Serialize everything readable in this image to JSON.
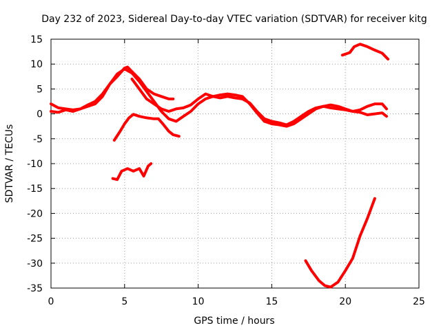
{
  "chart_data": {
    "type": "line",
    "title": "Day 232 of 2023, Sidereal Day-to-day VTEC variation (SDTVAR) for receiver kitg",
    "xlabel": "GPS time / hours",
    "ylabel": "SDTVAR / TECUs",
    "xlim": [
      0,
      25
    ],
    "ylim": [
      -35,
      15
    ],
    "xticks": [
      0,
      5,
      10,
      15,
      20,
      25
    ],
    "yticks": [
      -35,
      -30,
      -25,
      -20,
      -15,
      -10,
      -5,
      0,
      5,
      10,
      15
    ],
    "grid": true,
    "series_color": "#ff0000",
    "series": [
      {
        "name": "trace-1",
        "points": [
          [
            0,
            2
          ],
          [
            0.5,
            1.2
          ],
          [
            1,
            1
          ],
          [
            1.5,
            0.8
          ],
          [
            2,
            1
          ],
          [
            2.5,
            1.8
          ],
          [
            3,
            2.5
          ],
          [
            3.5,
            4
          ],
          [
            4,
            6
          ],
          [
            4.5,
            7.5
          ],
          [
            5,
            9.2
          ],
          [
            5.2,
            9.4
          ],
          [
            5.5,
            8.5
          ],
          [
            6,
            7
          ],
          [
            6.5,
            5
          ],
          [
            7,
            4
          ],
          [
            7.5,
            3.5
          ],
          [
            8,
            3
          ],
          [
            8.3,
            3
          ]
        ]
      },
      {
        "name": "trace-2",
        "points": [
          [
            0,
            0.5
          ],
          [
            0.5,
            0.3
          ],
          [
            1,
            0.8
          ],
          [
            1.5,
            0.5
          ],
          [
            2,
            1
          ],
          [
            2.5,
            1.5
          ],
          [
            3,
            2
          ],
          [
            3.5,
            3.5
          ],
          [
            4,
            6
          ],
          [
            4.5,
            8
          ],
          [
            5,
            9
          ],
          [
            5.5,
            8.2
          ],
          [
            6,
            6.5
          ],
          [
            6.5,
            4.5
          ],
          [
            7,
            2.5
          ],
          [
            7.5,
            0.5
          ],
          [
            8,
            -1
          ],
          [
            8.5,
            -1.5
          ],
          [
            9,
            -0.5
          ],
          [
            9.5,
            0.5
          ],
          [
            10,
            2
          ],
          [
            10.5,
            3
          ],
          [
            11,
            3.5
          ],
          [
            11.5,
            3.2
          ],
          [
            12,
            3.5
          ],
          [
            12.5,
            3.2
          ],
          [
            13,
            3
          ],
          [
            13.5,
            2.2
          ],
          [
            14,
            0.5
          ],
          [
            14.5,
            -1
          ],
          [
            15,
            -1.5
          ],
          [
            15.5,
            -1.8
          ],
          [
            16,
            -2.2
          ],
          [
            16.5,
            -1.5
          ],
          [
            17,
            -0.5
          ],
          [
            17.5,
            0.5
          ],
          [
            18,
            1.2
          ],
          [
            18.5,
            1.5
          ],
          [
            19,
            1.2
          ],
          [
            19.5,
            1
          ],
          [
            20,
            0.8
          ],
          [
            20.5,
            0.5
          ],
          [
            21,
            0.3
          ],
          [
            21.5,
            -0.2
          ],
          [
            22,
            0
          ],
          [
            22.5,
            0.2
          ],
          [
            22.8,
            -0.5
          ]
        ]
      },
      {
        "name": "trace-3",
        "points": [
          [
            5.5,
            7
          ],
          [
            6,
            5
          ],
          [
            6.5,
            3
          ],
          [
            7,
            2
          ],
          [
            7.5,
            1
          ],
          [
            8,
            0.5
          ],
          [
            8.5,
            1
          ],
          [
            9,
            1.2
          ],
          [
            9.5,
            1.8
          ],
          [
            10,
            3
          ],
          [
            10.5,
            4
          ],
          [
            11,
            3.5
          ],
          [
            11.5,
            3.8
          ],
          [
            12,
            4
          ],
          [
            12.5,
            3.8
          ],
          [
            13,
            3.5
          ],
          [
            13.5,
            2
          ],
          [
            14,
            0.2
          ],
          [
            14.5,
            -1.5
          ],
          [
            15,
            -2
          ],
          [
            15.5,
            -2.2
          ],
          [
            16,
            -2.5
          ],
          [
            16.5,
            -2
          ],
          [
            17,
            -1
          ],
          [
            17.5,
            0
          ],
          [
            18,
            1
          ],
          [
            18.5,
            1.5
          ],
          [
            19,
            1.8
          ],
          [
            19.5,
            1.5
          ],
          [
            20,
            1
          ],
          [
            20.5,
            0.5
          ],
          [
            21,
            0.8
          ],
          [
            21.5,
            1.5
          ],
          [
            22,
            2
          ],
          [
            22.5,
            2
          ],
          [
            22.8,
            1
          ]
        ]
      },
      {
        "name": "trace-4",
        "points": [
          [
            4.3,
            -5.3
          ],
          [
            4.7,
            -3.5
          ],
          [
            5,
            -2
          ],
          [
            5.3,
            -0.8
          ],
          [
            5.6,
            -0.1
          ],
          [
            6,
            -0.5
          ],
          [
            6.5,
            -0.8
          ],
          [
            7,
            -1
          ],
          [
            7.3,
            -1
          ],
          [
            7.6,
            -2
          ],
          [
            8,
            -3.5
          ],
          [
            8.3,
            -4.2
          ],
          [
            8.7,
            -4.5
          ]
        ]
      },
      {
        "name": "trace-5",
        "points": [
          [
            4.2,
            -13
          ],
          [
            4.5,
            -13.2
          ],
          [
            4.8,
            -11.5
          ],
          [
            5.2,
            -11
          ],
          [
            5.6,
            -11.5
          ],
          [
            6,
            -11
          ],
          [
            6.3,
            -12.5
          ],
          [
            6.6,
            -10.5
          ],
          [
            6.8,
            -10
          ]
        ]
      },
      {
        "name": "trace-6",
        "points": [
          [
            19.8,
            11.8
          ],
          [
            20.3,
            12.3
          ],
          [
            20.6,
            13.5
          ],
          [
            21,
            14
          ],
          [
            21.5,
            13.5
          ],
          [
            22,
            12.8
          ],
          [
            22.5,
            12.2
          ],
          [
            22.9,
            11
          ]
        ]
      },
      {
        "name": "trace-7",
        "points": [
          [
            17.3,
            -29.5
          ],
          [
            17.7,
            -31.5
          ],
          [
            18.2,
            -33.5
          ],
          [
            18.6,
            -34.5
          ],
          [
            19,
            -34.8
          ],
          [
            19.5,
            -33.8
          ],
          [
            20,
            -31.5
          ],
          [
            20.5,
            -29
          ],
          [
            21,
            -24.5
          ],
          [
            21.5,
            -21
          ],
          [
            22,
            -17
          ]
        ]
      }
    ]
  }
}
